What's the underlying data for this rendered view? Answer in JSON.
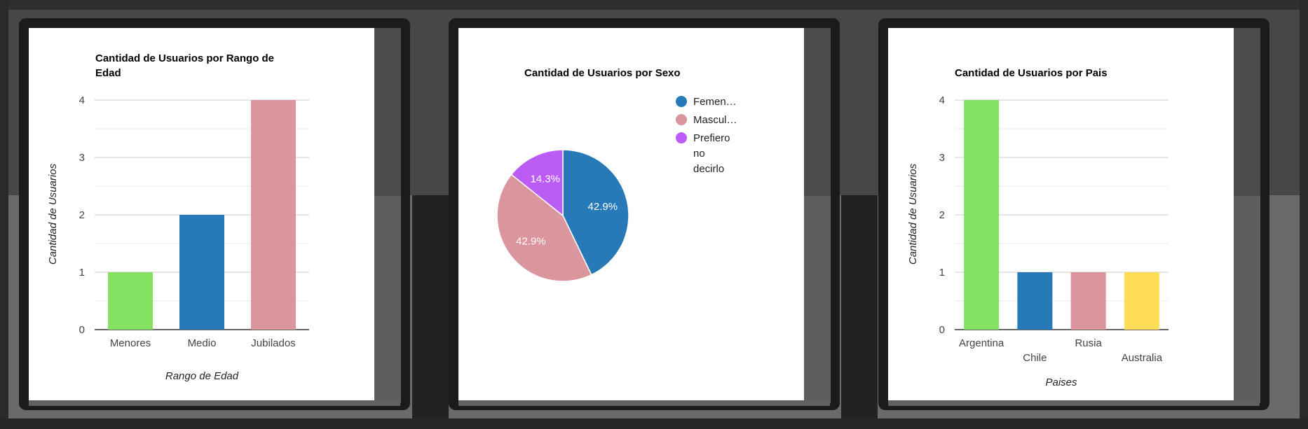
{
  "chart_data": [
    {
      "type": "bar",
      "title_lines": [
        "Cantidad de Usuarios por Rango de",
        "Edad"
      ],
      "categories": [
        "Menores",
        "Medio",
        "Jubilados"
      ],
      "values": [
        1,
        2,
        4
      ],
      "colors": [
        "#84e060",
        "#2779b8",
        "#da959d"
      ],
      "xlabel": "Rango de Edad",
      "ylabel": "Cantidad de Usuarios",
      "ylim": [
        0,
        4
      ],
      "yticks": [
        "0",
        "1",
        "2",
        "3",
        "4"
      ],
      "grid": true
    },
    {
      "type": "pie",
      "title": "Cantidad de Usuarios por Sexo",
      "slices": [
        {
          "label": "Femenino",
          "legend_label": "Femen…",
          "value": 42.9,
          "pct_label": "42.9%",
          "color": "#2779b8"
        },
        {
          "label": "Masculino",
          "legend_label": "Mascul…",
          "value": 42.9,
          "pct_label": "42.9%",
          "color": "#da959d"
        },
        {
          "label": "Prefiero no decirlo",
          "legend_lines": [
            "Prefiero",
            "no",
            "decirlo"
          ],
          "value": 14.3,
          "pct_label": "14.3%",
          "color": "#bb5cf7"
        }
      ],
      "legend_position": "right"
    },
    {
      "type": "bar",
      "title": "Cantidad de Usuarios por Pais",
      "categories": [
        "Argentina",
        "Chile",
        "Rusia",
        "Australia"
      ],
      "values": [
        4,
        1,
        1,
        1
      ],
      "colors": [
        "#84e060",
        "#2779b8",
        "#da959d",
        "#ffdd57"
      ],
      "xlabel": "Paises",
      "ylabel": "Cantidad de Usuarios",
      "ylim": [
        0,
        4
      ],
      "yticks": [
        "0",
        "1",
        "2",
        "3",
        "4"
      ],
      "grid": true
    }
  ]
}
